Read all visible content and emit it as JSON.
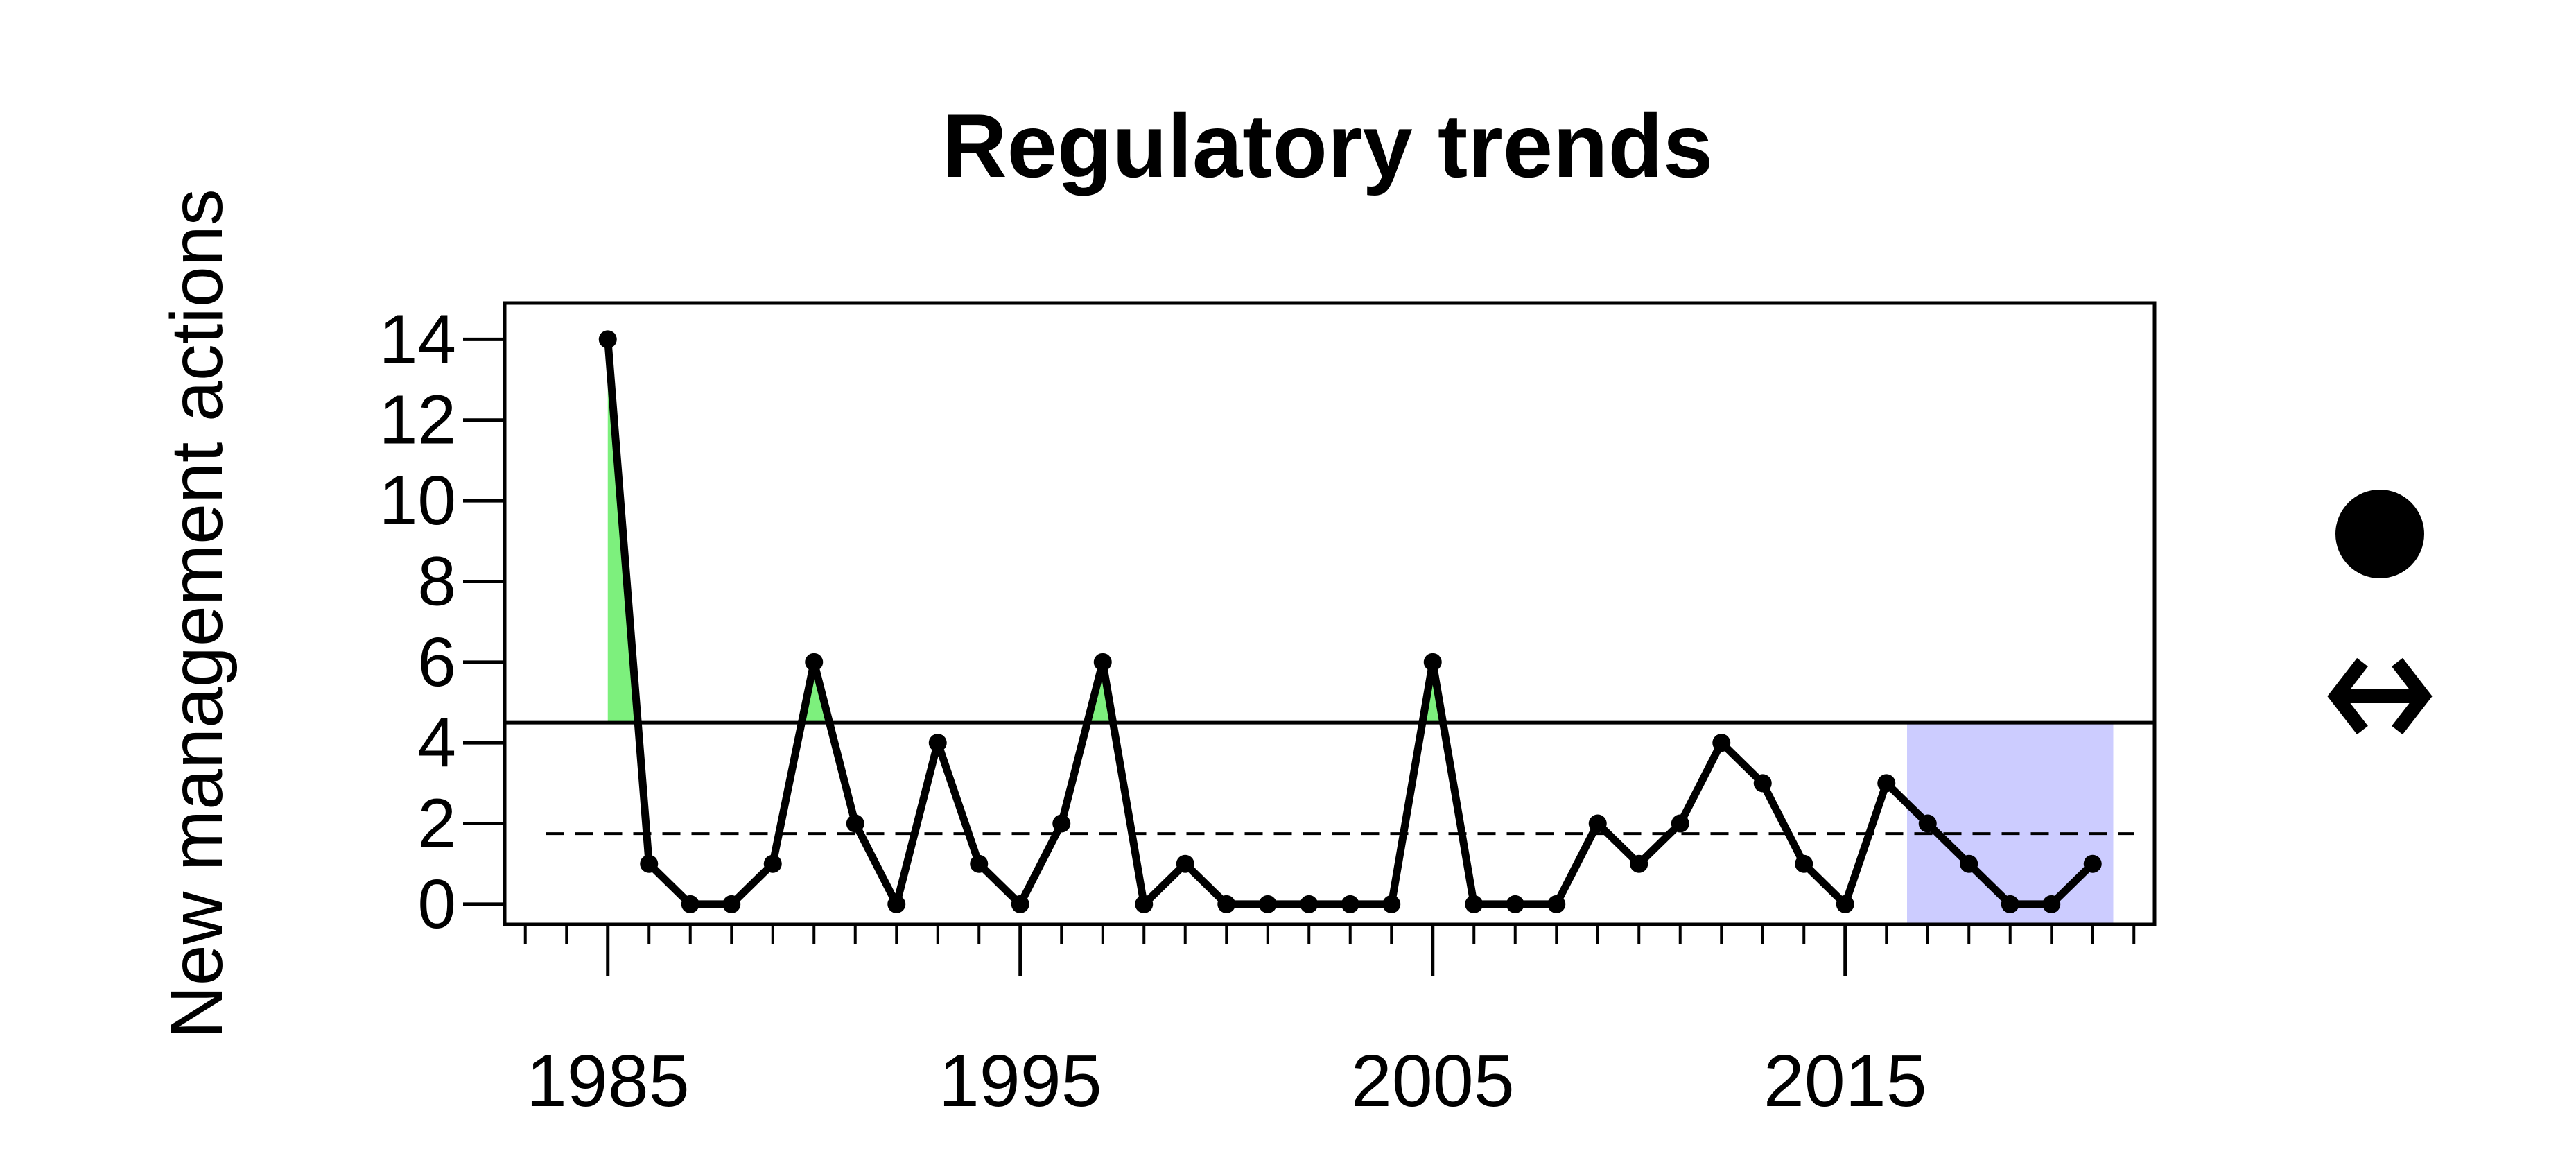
{
  "chart_data": {
    "type": "line",
    "title": "Regulatory trends",
    "xlabel": "",
    "ylabel": "New management actions",
    "x": [
      1985,
      1986,
      1987,
      1988,
      1989,
      1990,
      1991,
      1992,
      1993,
      1994,
      1995,
      1996,
      1997,
      1998,
      1999,
      2000,
      2001,
      2002,
      2003,
      2004,
      2005,
      2006,
      2007,
      2008,
      2009,
      2010,
      2011,
      2012,
      2013,
      2014,
      2015,
      2016,
      2017,
      2018,
      2019,
      2020,
      2021
    ],
    "values": [
      14,
      1,
      0,
      0,
      1,
      6,
      2,
      0,
      4,
      1,
      0,
      2,
      6,
      0,
      1,
      0,
      0,
      0,
      0,
      0,
      6,
      0,
      0,
      0,
      2,
      1,
      2,
      4,
      3,
      1,
      0,
      3,
      2,
      1,
      0,
      0,
      1
    ],
    "xlim": [
      1982.5,
      2022.5
    ],
    "ylim": [
      -0.5,
      14.9
    ],
    "x_ticks": [
      1985,
      1995,
      2005,
      2015
    ],
    "x_tick_labels": [
      "1985",
      "1995",
      "2005",
      "2015"
    ],
    "y_ticks": [
      0,
      2,
      4,
      6,
      8,
      10,
      12,
      14
    ],
    "y_tick_labels": [
      "0",
      "2",
      "4",
      "6",
      "8",
      "10",
      "12",
      "14"
    ],
    "upper_threshold": 4.5,
    "mean": 1.75,
    "highlight_period": [
      2016.5,
      2021.5
    ],
    "grid": false,
    "colors": {
      "line": "#000000",
      "above_threshold_fill": "#7df07d",
      "recent_period_fill": "#ccccff"
    },
    "legend_icons": [
      "filled-circle-icon",
      "double-arrow-icon"
    ]
  }
}
